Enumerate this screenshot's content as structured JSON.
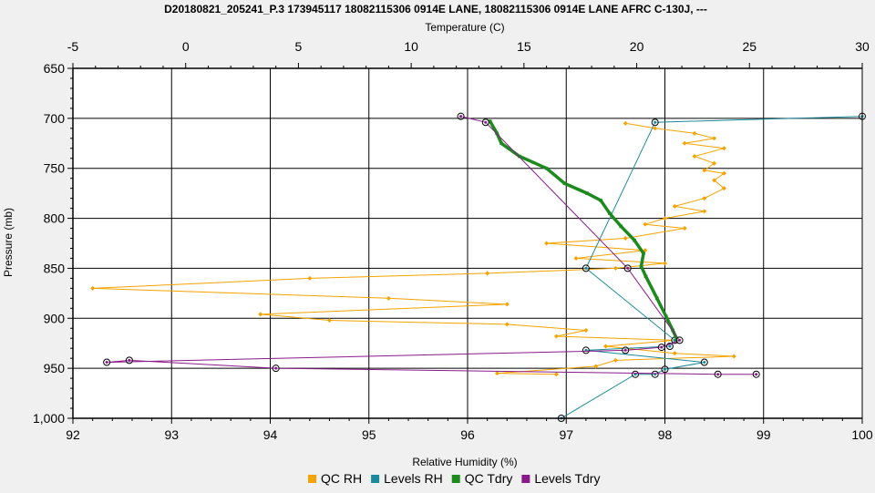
{
  "chart_data": {
    "type": "line",
    "title": "D20180821_205241_P.3 173945117 18082115306 0914E LANE, 18082115306 0914E LANE AFRC C-130J, ---",
    "top_axis": {
      "label": "Temperature (C)",
      "range": [
        -5,
        30
      ],
      "ticks": [
        "-5",
        "0",
        "5",
        "10",
        "15",
        "20",
        "25",
        "30"
      ]
    },
    "bottom_axis": {
      "label": "Relative Humidity (%)",
      "range": [
        92,
        100
      ],
      "ticks": [
        "92",
        "93",
        "94",
        "95",
        "96",
        "97",
        "98",
        "99",
        "100"
      ]
    },
    "y_axis": {
      "label": "Pressure (mb)",
      "range": [
        650,
        1000
      ],
      "inverted": true,
      "ticks": [
        "650",
        "700",
        "750",
        "800",
        "850",
        "900",
        "950",
        "1,000"
      ]
    },
    "grid": true,
    "legend_position": "bottom",
    "series": [
      {
        "name": "QC RH",
        "axis": "bottom",
        "color": "#f5a300",
        "marker": "diamond",
        "points": [
          [
            97.6,
            705
          ],
          [
            97.9,
            710
          ],
          [
            98.3,
            715
          ],
          [
            98.5,
            720
          ],
          [
            98.2,
            725
          ],
          [
            98.6,
            730
          ],
          [
            98.3,
            738
          ],
          [
            98.5,
            745
          ],
          [
            98.4,
            752
          ],
          [
            98.6,
            755
          ],
          [
            98.5,
            762
          ],
          [
            98.6,
            770
          ],
          [
            98.4,
            780
          ],
          [
            98.1,
            788
          ],
          [
            98.4,
            793
          ],
          [
            98.0,
            800
          ],
          [
            97.8,
            806
          ],
          [
            98.2,
            810
          ],
          [
            97.6,
            820
          ],
          [
            96.8,
            825
          ],
          [
            97.8,
            832
          ],
          [
            97.1,
            840
          ],
          [
            98.0,
            845
          ],
          [
            97.5,
            850
          ],
          [
            96.2,
            855
          ],
          [
            94.4,
            860
          ],
          [
            92.2,
            870
          ],
          [
            95.2,
            880
          ],
          [
            96.4,
            886
          ],
          [
            93.9,
            896
          ],
          [
            94.6,
            902
          ],
          [
            96.4,
            906
          ],
          [
            97.2,
            912
          ],
          [
            96.9,
            918
          ],
          [
            98.1,
            922
          ],
          [
            97.4,
            928
          ],
          [
            98.1,
            935
          ],
          [
            98.7,
            938
          ],
          [
            97.5,
            942
          ],
          [
            97.3,
            948
          ],
          [
            96.3,
            955
          ],
          [
            96.9,
            956
          ]
        ]
      },
      {
        "name": "Levels RH",
        "axis": "bottom",
        "color": "#1a8a9a",
        "marker": "circle",
        "points": [
          [
            100.0,
            698
          ],
          [
            97.9,
            704
          ],
          [
            97.2,
            850
          ],
          [
            98.1,
            922
          ],
          [
            98.05,
            928
          ],
          [
            97.2,
            932
          ],
          [
            98.4,
            944
          ],
          [
            98.0,
            951
          ],
          [
            97.9,
            956
          ],
          [
            97.7,
            956
          ],
          [
            96.95,
            1000
          ]
        ]
      },
      {
        "name": "QC Tdry",
        "axis": "top",
        "color": "#1c8a1c",
        "marker": "square",
        "points": [
          [
            13.5,
            703
          ],
          [
            13.8,
            715
          ],
          [
            14.0,
            725
          ],
          [
            14.8,
            738
          ],
          [
            16.0,
            750
          ],
          [
            16.8,
            765
          ],
          [
            17.8,
            775
          ],
          [
            18.4,
            782
          ],
          [
            18.8,
            795
          ],
          [
            19.3,
            808
          ],
          [
            19.9,
            822
          ],
          [
            20.3,
            835
          ],
          [
            20.2,
            848
          ],
          [
            20.4,
            858
          ],
          [
            20.9,
            880
          ],
          [
            21.3,
            898
          ],
          [
            21.6,
            912
          ],
          [
            21.8,
            922
          ]
        ]
      },
      {
        "name": "Levels Tdry",
        "axis": "top",
        "color": "#8a1a8a",
        "marker": "circle",
        "points": [
          [
            12.2,
            698
          ],
          [
            13.3,
            704
          ],
          [
            19.6,
            850
          ],
          [
            21.9,
            922
          ],
          [
            21.1,
            929
          ],
          [
            19.5,
            932
          ],
          [
            -3.5,
            944
          ],
          [
            -2.5,
            942
          ],
          [
            4.0,
            950
          ],
          [
            23.6,
            956
          ],
          [
            25.3,
            956
          ]
        ]
      }
    ]
  }
}
